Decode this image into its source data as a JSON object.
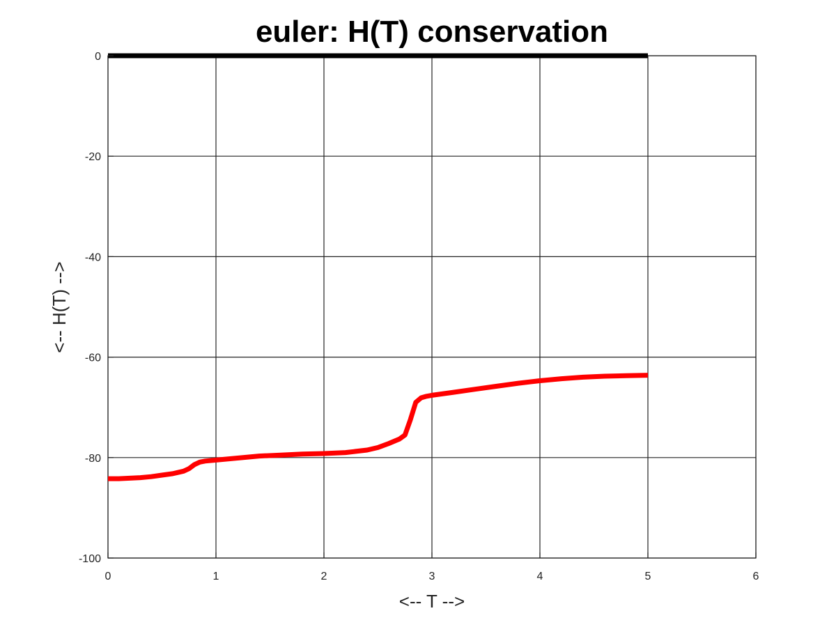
{
  "chart_data": {
    "type": "line",
    "title": "euler: H(T) conservation",
    "xlabel": "<-- T -->",
    "ylabel": "<-- H(T) -->",
    "xlim": [
      0,
      6
    ],
    "ylim": [
      -100,
      0
    ],
    "x_ticks": [
      0,
      1,
      2,
      3,
      4,
      5,
      6
    ],
    "x_tick_labels": [
      "0",
      "1",
      "2",
      "3",
      "4",
      "5",
      "6"
    ],
    "y_ticks": [
      0,
      -20,
      -40,
      -60,
      -80,
      -100
    ],
    "y_tick_labels": [
      "0",
      "-20",
      "-40",
      "-60",
      "-80",
      "-100"
    ],
    "grid": true,
    "series": [
      {
        "color": "#000000",
        "x": [
          0,
          5
        ],
        "y": [
          0,
          0
        ]
      },
      {
        "color": "#ff0000",
        "x": [
          0,
          0.1,
          0.2,
          0.3,
          0.4,
          0.5,
          0.6,
          0.7,
          0.75,
          0.8,
          0.85,
          0.9,
          1.0,
          1.2,
          1.4,
          1.6,
          1.8,
          2.0,
          2.2,
          2.4,
          2.5,
          2.6,
          2.7,
          2.75,
          2.8,
          2.85,
          2.9,
          2.95,
          3.0,
          3.2,
          3.4,
          3.6,
          3.8,
          4.0,
          4.2,
          4.4,
          4.6,
          4.8,
          5.0
        ],
        "y": [
          -84.2,
          -84.2,
          -84.1,
          -84.0,
          -83.8,
          -83.5,
          -83.2,
          -82.7,
          -82.2,
          -81.4,
          -80.9,
          -80.7,
          -80.5,
          -80.1,
          -79.7,
          -79.5,
          -79.3,
          -79.2,
          -79.0,
          -78.5,
          -78.0,
          -77.2,
          -76.3,
          -75.5,
          -72.5,
          -69.0,
          -68.1,
          -67.8,
          -67.6,
          -67.0,
          -66.4,
          -65.8,
          -65.2,
          -64.7,
          -64.3,
          -64.0,
          -63.8,
          -63.7,
          -63.6
        ]
      }
    ]
  }
}
